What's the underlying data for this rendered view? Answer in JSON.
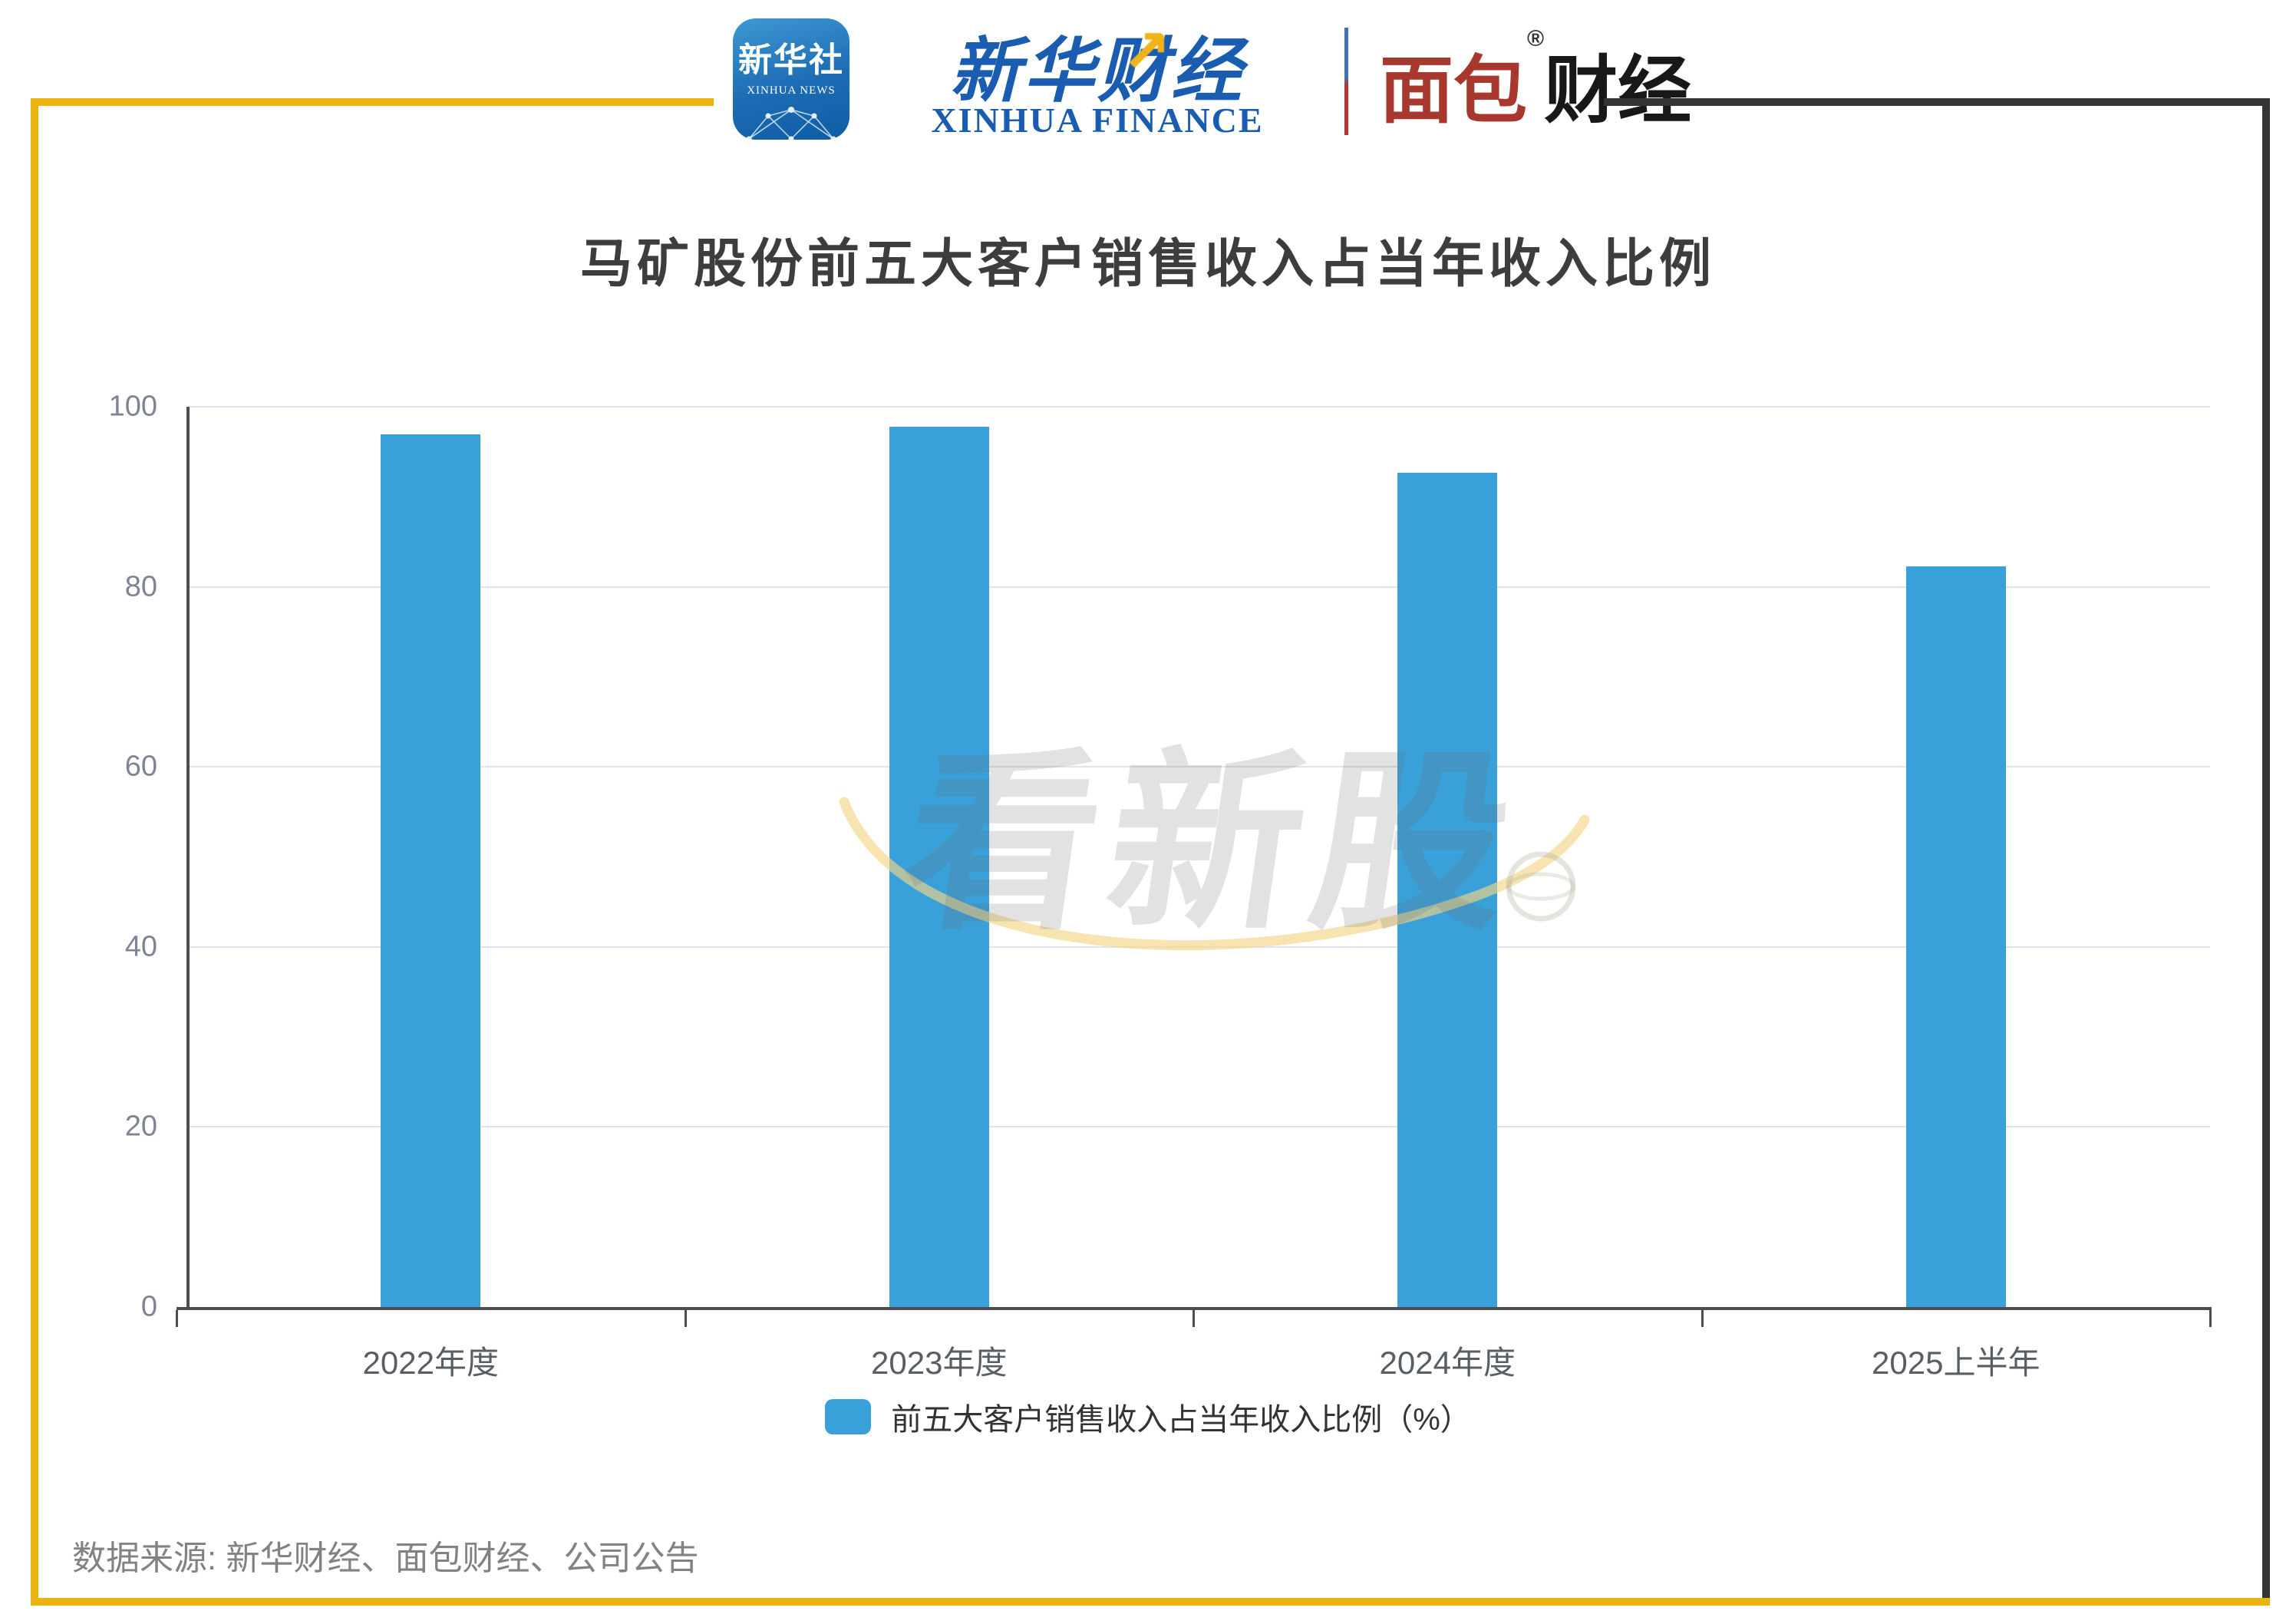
{
  "header": {
    "news_icon": {
      "cn": "新华社",
      "en": "XINHUA NEWS"
    },
    "finance_logo": {
      "cn": "新华财经",
      "en": "XINHUA FINANCE",
      "arrow": "↗"
    },
    "bread_logo": {
      "red": "面包",
      "reg": "®",
      "black": "财经"
    }
  },
  "chart_data": {
    "type": "bar",
    "title": "马矿股份前五大客户销售收入占当年收入比例",
    "categories": [
      "2022年度",
      "2023年度",
      "2024年度",
      "2025上半年"
    ],
    "values": [
      96.9,
      97.8,
      92.7,
      82.3
    ],
    "series_name": "前五大客户销售收入占当年收入比例（%）",
    "unit": "%",
    "ylim": [
      0,
      100
    ],
    "yticks": [
      0,
      20,
      40,
      60,
      80,
      100
    ],
    "grid": true,
    "legend_position": "bottom",
    "bar_color": "#39a0d9"
  },
  "legend": {
    "label": "前五大客户销售收入占当年收入比例（%）"
  },
  "watermark": {
    "text": "看新股"
  },
  "source": {
    "label": "数据来源: 新华财经、面包财经、公司公告"
  },
  "colors": {
    "bar": "#39a0d9",
    "frame_yellow": "#eab30f",
    "frame_dark": "#333436",
    "finance_blue": "#1a5cb0",
    "bread_red": "#a8372e"
  }
}
